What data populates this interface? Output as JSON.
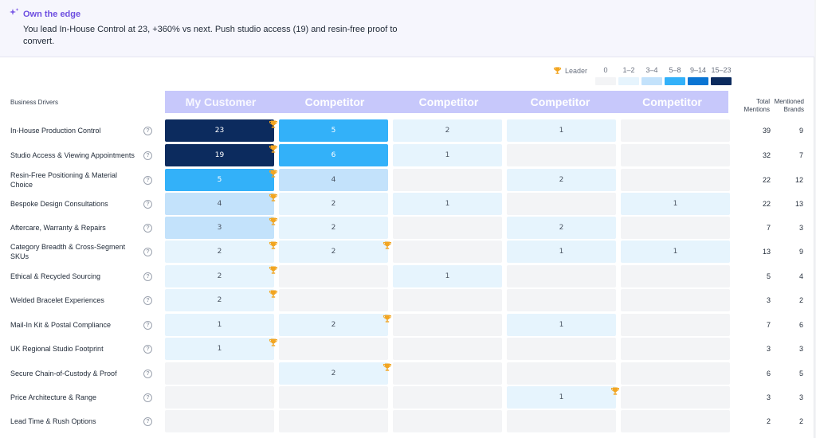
{
  "insight": {
    "title": "Own the edge",
    "body": "You lead In-House Control at 23, +360% vs next. Push studio access (19) and resin-free proof to convert.",
    "icon": "sparkle-icon"
  },
  "legend": {
    "leader_label": "Leader",
    "bins": [
      {
        "label": "0",
        "color": "#f3f4f6"
      },
      {
        "label": "1–2",
        "color": "#e6f4fd"
      },
      {
        "label": "3–4",
        "color": "#c3e2fb"
      },
      {
        "label": "5–8",
        "color": "#33b1f9"
      },
      {
        "label": "9–14",
        "color": "#0b75d3"
      },
      {
        "label": "15–23",
        "color": "#0c2b5e"
      }
    ]
  },
  "table": {
    "drivers_header": "Business Drivers",
    "columns": [
      "My Customer",
      "Competitor",
      "Competitor",
      "Competitor",
      "Competitor"
    ],
    "total_header": [
      "Total",
      "Mentions"
    ],
    "brands_header": [
      "Mentioned",
      "Brands"
    ],
    "rows": [
      {
        "label": "In-House Production Control",
        "values": [
          23,
          5,
          2,
          1,
          0
        ],
        "leader": 0,
        "total": "39",
        "brands": "9"
      },
      {
        "label": "Studio Access & Viewing Appointments",
        "values": [
          19,
          6,
          1,
          0,
          0
        ],
        "leader": 0,
        "total": "32",
        "brands": "7"
      },
      {
        "label": "Resin-Free Positioning & Material Choice",
        "values": [
          5,
          4,
          0,
          2,
          0
        ],
        "leader": 0,
        "total": "22",
        "brands": "12"
      },
      {
        "label": "Bespoke Design Consultations",
        "values": [
          4,
          2,
          1,
          0,
          1
        ],
        "leader": 0,
        "total": "22",
        "brands": "13"
      },
      {
        "label": "Aftercare, Warranty & Repairs",
        "values": [
          3,
          2,
          0,
          2,
          0
        ],
        "leader": 0,
        "total": "7",
        "brands": "3"
      },
      {
        "label": "Category Breadth & Cross-Segment SKUs",
        "values": [
          2,
          2,
          0,
          1,
          1
        ],
        "leader": [
          0,
          1
        ],
        "total": "13",
        "brands": "9"
      },
      {
        "label": "Ethical & Recycled Sourcing",
        "values": [
          2,
          0,
          1,
          0,
          0
        ],
        "leader": 0,
        "total": "5",
        "brands": "4"
      },
      {
        "label": "Welded Bracelet Experiences",
        "values": [
          2,
          0,
          0,
          0,
          0
        ],
        "leader": 0,
        "total": "3",
        "brands": "2"
      },
      {
        "label": "Mail-In Kit & Postal Compliance",
        "values": [
          1,
          2,
          0,
          1,
          0
        ],
        "leader": 1,
        "total": "7",
        "brands": "6"
      },
      {
        "label": "UK Regional Studio Footprint",
        "values": [
          1,
          0,
          0,
          0,
          0
        ],
        "leader": 0,
        "total": "3",
        "brands": "3"
      },
      {
        "label": "Secure Chain-of-Custody & Proof",
        "values": [
          0,
          2,
          0,
          0,
          0
        ],
        "leader": 1,
        "total": "6",
        "brands": "5"
      },
      {
        "label": "Price Architecture & Range",
        "values": [
          0,
          0,
          0,
          1,
          0
        ],
        "leader": 3,
        "total": "3",
        "brands": "3"
      },
      {
        "label": "Lead Time & Rush Options",
        "values": [
          0,
          0,
          0,
          0,
          0
        ],
        "leader": -1,
        "total": "2",
        "brands": "2"
      }
    ]
  }
}
